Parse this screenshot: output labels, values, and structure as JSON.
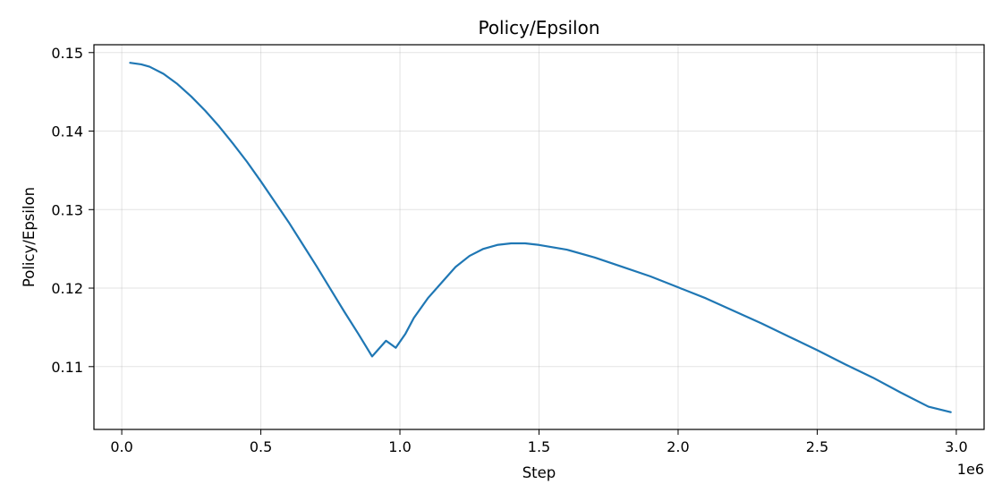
{
  "chart_data": {
    "type": "line",
    "title": "Policy/Epsilon",
    "xlabel": "Step",
    "ylabel": "Policy/Epsilon",
    "x_offset_label": "1e6",
    "xlim": [
      -0.1,
      3.1
    ],
    "ylim": [
      0.102,
      0.151
    ],
    "x_ticks": [
      0.0,
      0.5,
      1.0,
      1.5,
      2.0,
      2.5,
      3.0
    ],
    "x_tick_labels": [
      "0.0",
      "0.5",
      "1.0",
      "1.5",
      "2.0",
      "2.5",
      "3.0"
    ],
    "y_ticks": [
      0.11,
      0.12,
      0.13,
      0.14,
      0.15
    ],
    "y_tick_labels": [
      "0.11",
      "0.12",
      "0.13",
      "0.14",
      "0.15"
    ],
    "grid": true,
    "series": [
      {
        "color": "#1f77b4",
        "x": [
          0.03,
          0.07,
          0.1,
          0.15,
          0.2,
          0.25,
          0.3,
          0.35,
          0.4,
          0.45,
          0.5,
          0.55,
          0.6,
          0.65,
          0.7,
          0.75,
          0.8,
          0.85,
          0.9,
          0.95,
          0.985,
          1.02,
          1.05,
          1.1,
          1.15,
          1.2,
          1.25,
          1.3,
          1.35,
          1.4,
          1.45,
          1.5,
          1.6,
          1.7,
          1.8,
          1.9,
          2.0,
          2.1,
          2.2,
          2.3,
          2.4,
          2.5,
          2.6,
          2.7,
          2.8,
          2.9,
          2.98
        ],
        "y": [
          0.1487,
          0.1485,
          0.1482,
          0.1473,
          0.146,
          0.1444,
          0.1426,
          0.1406,
          0.1384,
          0.1361,
          0.1336,
          0.131,
          0.1284,
          0.1256,
          0.1228,
          0.1199,
          0.117,
          0.1142,
          0.1113,
          0.1133,
          0.1124,
          0.1142,
          0.1162,
          0.1187,
          0.1207,
          0.1227,
          0.1241,
          0.125,
          0.1255,
          0.1257,
          0.1257,
          0.1255,
          0.1249,
          0.1239,
          0.1227,
          0.1215,
          0.1201,
          0.1187,
          0.1171,
          0.1155,
          0.1138,
          0.1121,
          0.1103,
          0.1086,
          0.1067,
          0.1049,
          0.1042
        ]
      }
    ]
  }
}
